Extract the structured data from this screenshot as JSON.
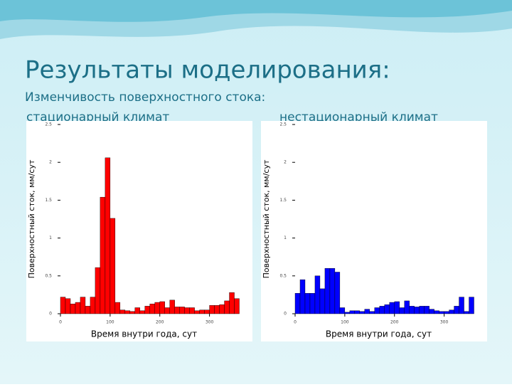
{
  "title": "Результаты моделирования:",
  "subtitle": "Изменчивость поверхностного стока:",
  "chart_data": [
    {
      "type": "histogram",
      "title": "стационарный климат",
      "color": "#ff0000",
      "xlabel": "Время  внутри года, сут",
      "ylabel": "Поверхностный сток, мм/сут",
      "bins": [
        0,
        10,
        20,
        30,
        40,
        50,
        60,
        70,
        80,
        90,
        100,
        110,
        120,
        130,
        140,
        150,
        160,
        170,
        180,
        190,
        200,
        210,
        220,
        230,
        240,
        250,
        260,
        270,
        280,
        290,
        300,
        310,
        320,
        330,
        340,
        350,
        360
      ],
      "counts": [
        0.22,
        0.2,
        0.13,
        0.15,
        0.22,
        0.1,
        0.22,
        0.61,
        1.54,
        2.06,
        1.26,
        0.15,
        0.05,
        0.04,
        0.03,
        0.08,
        0.04,
        0.1,
        0.13,
        0.15,
        0.16,
        0.08,
        0.18,
        0.09,
        0.09,
        0.08,
        0.08,
        0.04,
        0.05,
        0.05,
        0.11,
        0.11,
        0.12,
        0.17,
        0.28,
        0.2
      ],
      "xlim": [
        0,
        365
      ],
      "xticks": [
        0,
        100,
        200,
        300
      ],
      "ylim": [
        0,
        2.5
      ],
      "yticks": [
        0,
        0.5,
        1,
        1.5,
        2,
        2.5
      ]
    },
    {
      "type": "histogram",
      "title": "нестационарный климат",
      "color": "#0000ff",
      "xlabel": "Время  внутри года, сут",
      "ylabel": "Поверхностный сток, мм/сут",
      "bins": [
        0,
        10,
        20,
        30,
        40,
        50,
        60,
        70,
        80,
        90,
        100,
        110,
        120,
        130,
        140,
        150,
        160,
        170,
        180,
        190,
        200,
        210,
        220,
        230,
        240,
        250,
        260,
        270,
        280,
        290,
        300,
        310,
        320,
        330,
        340,
        350,
        360
      ],
      "counts": [
        0.27,
        0.45,
        0.27,
        0.27,
        0.5,
        0.33,
        0.6,
        0.6,
        0.55,
        0.08,
        0.02,
        0.04,
        0.04,
        0.03,
        0.06,
        0.03,
        0.08,
        0.1,
        0.12,
        0.15,
        0.16,
        0.08,
        0.17,
        0.1,
        0.09,
        0.1,
        0.1,
        0.06,
        0.04,
        0.03,
        0.03,
        0.05,
        0.1,
        0.22,
        0.03,
        0.22
      ],
      "xlim": [
        0,
        365
      ],
      "xticks": [
        0,
        100,
        200,
        300
      ],
      "ylim": [
        0,
        2.5
      ],
      "yticks": [
        0,
        0.5,
        1,
        1.5,
        2,
        2.5
      ]
    }
  ]
}
